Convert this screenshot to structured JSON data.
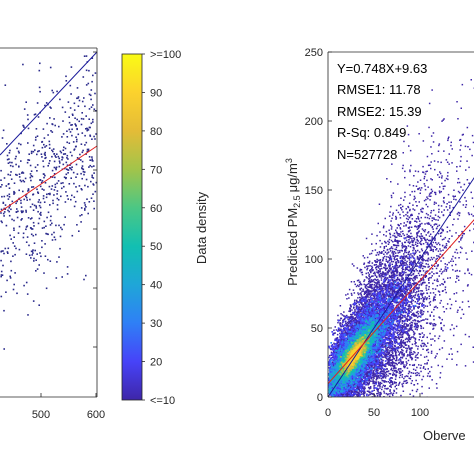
{
  "chart_data": [
    {
      "type": "scatter",
      "title": "",
      "xlabel": "",
      "ylabel": "",
      "xlim": [
        400,
        600
      ],
      "x_ticks": [
        "500",
        "600"
      ],
      "one_to_one_line_color": "#1a1a9a",
      "fit_line_color": "#e02020",
      "point_color": "#2b2b8c"
    },
    {
      "type": "colorbar",
      "label": "Data density",
      "ticks": [
        "<=10",
        "20",
        "30",
        "40",
        "50",
        "60",
        "70",
        "80",
        "90",
        ">=100"
      ],
      "tick_values": [
        10,
        20,
        30,
        40,
        50,
        60,
        70,
        80,
        90,
        100
      ],
      "range": [
        10,
        100
      ],
      "colormap": [
        "#3e26a8",
        "#4743f8",
        "#2f7ff6",
        "#1fa6d8",
        "#12bfb2",
        "#4cc784",
        "#a2c44a",
        "#e4bc37",
        "#fcd22d",
        "#f9fb15"
      ]
    },
    {
      "type": "scatter",
      "xlabel": "Oberve",
      "ylabel_prefix": "Predicted PM",
      "ylabel_sub": "2.5",
      "ylabel_unit_prefix": "μg/m",
      "ylabel_unit_sup": "3",
      "xlim": [
        0,
        150
      ],
      "ylim": [
        0,
        250
      ],
      "x_ticks": [
        0,
        50,
        100
      ],
      "x_tick_labels": [
        "0",
        "50",
        "100"
      ],
      "y_ticks": [
        0,
        50,
        100,
        150,
        200,
        250
      ],
      "y_tick_labels": [
        "0",
        "50",
        "100",
        "150",
        "200",
        "250"
      ],
      "fit": {
        "slope": 0.748,
        "intercept": 9.63
      },
      "stats": [
        "Y=0.748X+9.63",
        "RMSE1: 11.78",
        "RMSE2: 15.39",
        "R-Sq: 0.849",
        "N=527728"
      ],
      "one_to_one_line_color": "#1a1a9a",
      "fit_line_color": "#e02020"
    }
  ]
}
